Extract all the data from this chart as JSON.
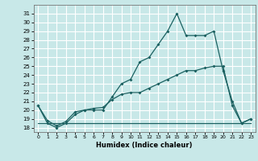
{
  "background_color": "#c8e8e8",
  "grid_color": "#ffffff",
  "line_color": "#1a6060",
  "xlabel": "Humidex (Indice chaleur)",
  "xlim": [
    -0.5,
    23.5
  ],
  "ylim": [
    17.5,
    32.0
  ],
  "xticks": [
    0,
    1,
    2,
    3,
    4,
    5,
    6,
    7,
    8,
    9,
    10,
    11,
    12,
    13,
    14,
    15,
    16,
    17,
    18,
    19,
    20,
    21,
    22,
    23
  ],
  "yticks": [
    18,
    19,
    20,
    21,
    22,
    23,
    24,
    25,
    26,
    27,
    28,
    29,
    30,
    31
  ],
  "curve1_x": [
    0,
    1,
    2,
    3,
    4,
    5,
    6,
    7,
    8,
    9,
    10,
    11,
    12,
    13,
    14,
    15,
    16,
    17,
    18,
    19,
    20,
    21,
    22,
    23
  ],
  "curve1_y": [
    20.5,
    18.5,
    18.0,
    18.5,
    19.5,
    20.0,
    20.0,
    20.0,
    21.5,
    23.0,
    23.5,
    25.5,
    26.0,
    27.5,
    29.0,
    31.0,
    28.5,
    28.5,
    28.5,
    29.0,
    24.5,
    21.0,
    18.5,
    19.0
  ],
  "curve2_x": [
    0,
    1,
    2,
    3,
    4,
    5,
    6,
    7,
    8,
    9,
    10,
    11,
    12,
    13,
    14,
    15,
    16,
    17,
    18,
    19,
    20,
    21,
    22,
    23
  ],
  "curve2_y": [
    20.5,
    18.8,
    18.2,
    18.7,
    19.8,
    20.0,
    20.2,
    20.3,
    21.2,
    21.8,
    22.0,
    22.0,
    22.5,
    23.0,
    23.5,
    24.0,
    24.5,
    24.5,
    24.8,
    25.0,
    25.0,
    20.5,
    18.5,
    19.0
  ],
  "line3_x": [
    0,
    23
  ],
  "line3_y": [
    18.5,
    18.5
  ],
  "line4_x": [
    1,
    22
  ],
  "line4_y": [
    18.5,
    18.5
  ]
}
